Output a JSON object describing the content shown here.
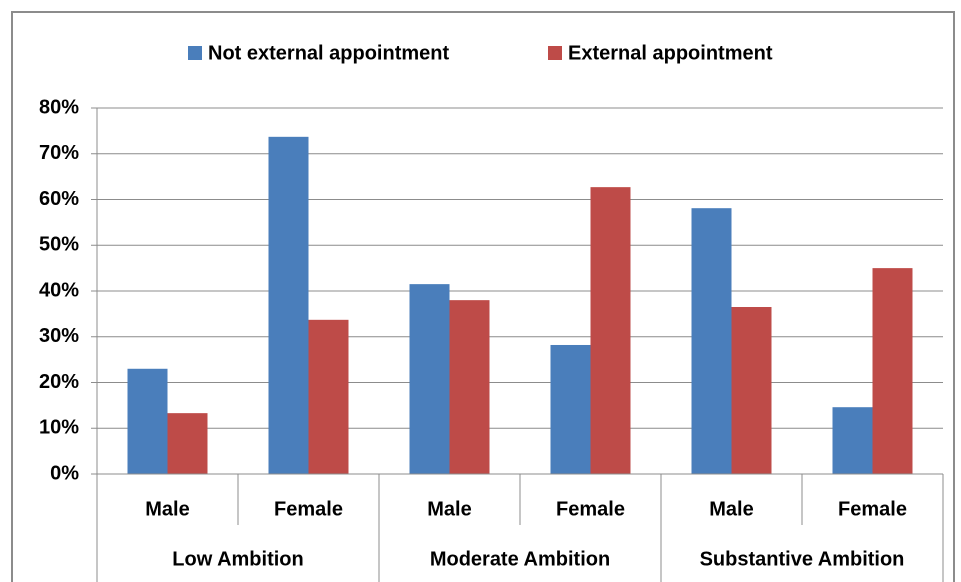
{
  "chart_data": {
    "type": "bar",
    "categories": [
      "Male",
      "Female",
      "Male",
      "Female",
      "Male",
      "Female"
    ],
    "groups": [
      "Low Ambition",
      "Moderate Ambition",
      "Substantive Ambition"
    ],
    "series": [
      {
        "name": "Not external appointment",
        "color": "#4a7ebb",
        "values": [
          23,
          73.7,
          41.5,
          28.2,
          58.1,
          14.6
        ]
      },
      {
        "name": "External appointment",
        "color": "#be4b48",
        "values": [
          13.3,
          33.7,
          38,
          62.7,
          36.5,
          45
        ]
      }
    ],
    "ylim": [
      0,
      80
    ],
    "yticks": [
      {
        "value": 0,
        "label": "0%"
      },
      {
        "value": 10,
        "label": "10%"
      },
      {
        "value": 20,
        "label": "20%"
      },
      {
        "value": 30,
        "label": "30%"
      },
      {
        "value": 40,
        "label": "40%"
      },
      {
        "value": 50,
        "label": "50%"
      },
      {
        "value": 60,
        "label": "60%"
      },
      {
        "value": 70,
        "label": "70%"
      },
      {
        "value": 80,
        "label": "80%"
      }
    ],
    "grid": true
  }
}
